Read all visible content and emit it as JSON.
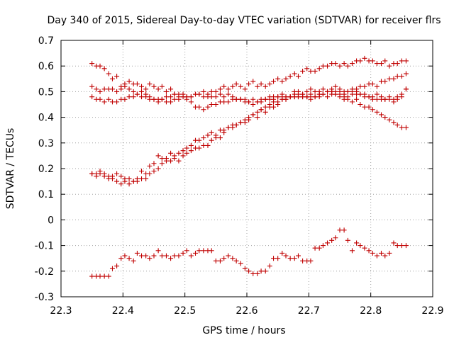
{
  "chart_data": {
    "type": "scatter",
    "title": "Day 340 of 2015, Sidereal Day-to-day VTEC variation (SDTVAR) for receiver flrs",
    "xlabel": "GPS time / hours",
    "ylabel": "SDTVAR / TECUs",
    "xlim": [
      22.3,
      22.9
    ],
    "ylim": [
      -0.3,
      0.7
    ],
    "xticks": [
      "22.3",
      "22.4",
      "22.5",
      "22.6",
      "22.7",
      "22.8",
      "22.9"
    ],
    "yticks": [
      "-0.3",
      "-0.2",
      "-0.1",
      "0",
      "0.1",
      "0.2",
      "0.3",
      "0.4",
      "0.5",
      "0.6",
      "0.7"
    ],
    "grid": true,
    "marker": "+",
    "color": "#c00000",
    "series": [
      {
        "name": "series-1",
        "x": [
          22.35,
          22.357,
          22.363,
          22.37,
          22.377,
          22.383,
          22.39,
          22.397,
          22.403,
          22.41,
          22.417,
          22.423,
          22.43,
          22.437,
          22.443,
          22.45,
          22.457,
          22.463,
          22.47,
          22.477,
          22.483,
          22.49,
          22.497,
          22.503,
          22.51,
          22.517,
          22.523,
          22.53,
          22.537,
          22.543,
          22.55,
          22.557,
          22.563,
          22.57,
          22.577,
          22.583,
          22.59,
          22.597,
          22.603,
          22.61,
          22.617,
          22.623,
          22.63,
          22.637,
          22.643,
          22.65,
          22.657,
          22.663,
          22.67,
          22.677,
          22.683,
          22.69,
          22.697,
          22.703,
          22.71,
          22.717,
          22.723,
          22.73,
          22.737,
          22.743,
          22.75,
          22.757,
          22.763,
          22.77,
          22.777,
          22.783,
          22.79,
          22.797,
          22.803,
          22.81,
          22.817,
          22.823,
          22.83,
          22.837,
          22.843,
          22.85,
          22.857
        ],
        "y": [
          0.61,
          0.6,
          0.6,
          0.59,
          0.57,
          0.55,
          0.56,
          0.52,
          0.53,
          0.54,
          0.53,
          0.53,
          0.52,
          0.51,
          0.53,
          0.52,
          0.51,
          0.52,
          0.5,
          0.51,
          0.49,
          0.49,
          0.48,
          0.47,
          0.46,
          0.44,
          0.44,
          0.43,
          0.44,
          0.45,
          0.45,
          0.46,
          0.46,
          0.46,
          0.47,
          0.47,
          0.47,
          0.46,
          0.46,
          0.45,
          0.46,
          0.46,
          0.47,
          0.47,
          0.48,
          0.48,
          0.49,
          0.48,
          0.48,
          0.49,
          0.48,
          0.49,
          0.48,
          0.49,
          0.48,
          0.49,
          0.49,
          0.5,
          0.5,
          0.5,
          0.49,
          0.48,
          0.47,
          0.46,
          0.47,
          0.45,
          0.44,
          0.44,
          0.43,
          0.42,
          0.41,
          0.4,
          0.39,
          0.38,
          0.37,
          0.36,
          0.36
        ]
      },
      {
        "name": "series-2",
        "x": [
          22.35,
          22.357,
          22.363,
          22.37,
          22.377,
          22.383,
          22.39,
          22.397,
          22.403,
          22.41,
          22.417,
          22.423,
          22.43,
          22.437,
          22.443,
          22.45,
          22.457,
          22.463,
          22.47,
          22.477,
          22.483,
          22.49,
          22.497,
          22.503,
          22.51,
          22.517,
          22.523,
          22.53,
          22.537,
          22.543,
          22.55,
          22.557,
          22.563,
          22.57,
          22.577,
          22.583,
          22.59,
          22.597,
          22.603,
          22.61,
          22.617,
          22.623,
          22.63,
          22.637,
          22.643,
          22.65,
          22.657,
          22.663,
          22.67,
          22.677,
          22.683,
          22.69,
          22.697,
          22.703,
          22.71,
          22.717,
          22.723,
          22.73,
          22.737,
          22.743,
          22.75,
          22.757,
          22.763,
          22.77,
          22.777,
          22.783,
          22.79,
          22.797,
          22.803,
          22.81,
          22.817,
          22.823,
          22.83,
          22.837,
          22.843,
          22.85,
          22.857
        ],
        "y": [
          0.52,
          0.51,
          0.5,
          0.51,
          0.51,
          0.51,
          0.5,
          0.51,
          0.52,
          0.51,
          0.5,
          0.49,
          0.5,
          0.49,
          0.48,
          0.47,
          0.47,
          0.47,
          0.48,
          0.48,
          0.49,
          0.48,
          0.49,
          0.48,
          0.48,
          0.49,
          0.49,
          0.5,
          0.49,
          0.5,
          0.5,
          0.51,
          0.52,
          0.51,
          0.52,
          0.53,
          0.52,
          0.51,
          0.53,
          0.54,
          0.52,
          0.53,
          0.52,
          0.53,
          0.54,
          0.55,
          0.54,
          0.55,
          0.56,
          0.57,
          0.56,
          0.58,
          0.59,
          0.58,
          0.58,
          0.59,
          0.6,
          0.6,
          0.61,
          0.61,
          0.6,
          0.61,
          0.6,
          0.61,
          0.62,
          0.62,
          0.63,
          0.62,
          0.62,
          0.61,
          0.61,
          0.62,
          0.6,
          0.61,
          0.61,
          0.62,
          0.62
        ]
      },
      {
        "name": "series-3",
        "x": [
          22.35,
          22.357,
          22.363,
          22.37,
          22.377,
          22.383,
          22.39,
          22.397,
          22.403,
          22.41,
          22.417,
          22.423,
          22.43,
          22.437,
          22.443,
          22.45,
          22.457,
          22.463,
          22.47,
          22.477,
          22.483,
          22.49,
          22.497,
          22.503,
          22.51,
          22.517,
          22.523,
          22.53,
          22.537,
          22.543,
          22.55,
          22.557,
          22.563,
          22.57,
          22.577,
          22.583,
          22.59,
          22.597,
          22.603,
          22.61,
          22.617,
          22.623,
          22.63,
          22.637,
          22.643,
          22.65,
          22.657,
          22.663,
          22.67,
          22.677,
          22.683,
          22.69,
          22.697,
          22.703,
          22.71,
          22.717,
          22.723,
          22.73,
          22.737,
          22.743,
          22.75,
          22.757,
          22.763,
          22.77,
          22.777,
          22.783,
          22.79,
          22.797,
          22.803,
          22.81,
          22.817,
          22.823,
          22.83,
          22.837,
          22.843,
          22.85,
          22.857
        ],
        "y": [
          0.48,
          0.47,
          0.47,
          0.46,
          0.47,
          0.46,
          0.46,
          0.47,
          0.47,
          0.48,
          0.48,
          0.49,
          0.48,
          0.48,
          0.47,
          0.47,
          0.46,
          0.47,
          0.46,
          0.46,
          0.47,
          0.47,
          0.48,
          0.48,
          0.48,
          0.49,
          0.49,
          0.48,
          0.48,
          0.48,
          0.48,
          0.49,
          0.48,
          0.49,
          0.48,
          0.47,
          0.47,
          0.47,
          0.46,
          0.47,
          0.46,
          0.47,
          0.47,
          0.48,
          0.47,
          0.48,
          0.48,
          0.47,
          0.48,
          0.48,
          0.49,
          0.48,
          0.48,
          0.47,
          0.48,
          0.48,
          0.49,
          0.48,
          0.49,
          0.49,
          0.5,
          0.49,
          0.5,
          0.51,
          0.51,
          0.52,
          0.52,
          0.53,
          0.53,
          0.52,
          0.54,
          0.54,
          0.55,
          0.55,
          0.56,
          0.56,
          0.57
        ]
      },
      {
        "name": "series-4",
        "x": [
          22.35,
          22.357,
          22.363,
          22.37,
          22.377,
          22.383,
          22.39,
          22.397,
          22.403,
          22.41,
          22.417,
          22.423,
          22.43,
          22.437,
          22.443,
          22.45,
          22.457,
          22.463,
          22.47,
          22.477,
          22.483,
          22.49,
          22.497,
          22.503,
          22.51,
          22.517,
          22.523,
          22.53,
          22.537,
          22.543,
          22.55,
          22.557,
          22.563,
          22.57,
          22.577,
          22.583,
          22.59,
          22.597,
          22.603,
          22.61,
          22.617,
          22.623,
          22.63,
          22.637,
          22.643,
          22.65,
          22.657,
          22.663,
          22.67,
          22.677,
          22.683,
          22.69,
          22.697,
          22.703,
          22.71,
          22.717,
          22.723,
          22.73,
          22.737,
          22.743,
          22.75,
          22.757,
          22.763,
          22.77,
          22.777,
          22.783,
          22.79,
          22.797,
          22.803,
          22.81,
          22.817,
          22.823,
          22.83,
          22.837,
          22.843,
          22.85,
          22.857
        ],
        "y": [
          0.18,
          0.18,
          0.19,
          0.18,
          0.17,
          0.17,
          0.18,
          0.17,
          0.16,
          0.16,
          0.15,
          0.16,
          0.19,
          0.18,
          0.21,
          0.22,
          0.25,
          0.24,
          0.24,
          0.26,
          0.25,
          0.26,
          0.27,
          0.28,
          0.29,
          0.31,
          0.31,
          0.32,
          0.33,
          0.34,
          0.33,
          0.35,
          0.35,
          0.36,
          0.37,
          0.37,
          0.38,
          0.38,
          0.39,
          0.41,
          0.4,
          0.43,
          0.42,
          0.44,
          0.44,
          0.45,
          0.47,
          0.48,
          0.48,
          0.5,
          0.5,
          0.49,
          0.5,
          0.51,
          0.5,
          0.5,
          0.51,
          0.5,
          0.51,
          0.52,
          0.51,
          0.5,
          0.5,
          0.5,
          0.49,
          0.49,
          0.49,
          0.48,
          0.48,
          0.49,
          0.48,
          0.47,
          0.47,
          0.46,
          0.47,
          0.48,
          0.51
        ]
      },
      {
        "name": "series-5",
        "x": [
          22.35,
          22.357,
          22.363,
          22.37,
          22.377,
          22.383,
          22.39,
          22.397,
          22.403,
          22.41,
          22.417,
          22.423,
          22.43,
          22.437,
          22.443,
          22.45,
          22.457,
          22.463,
          22.47,
          22.477,
          22.483,
          22.49,
          22.497,
          22.503,
          22.51,
          22.517,
          22.523,
          22.53,
          22.537,
          22.543,
          22.55,
          22.557,
          22.563,
          22.57,
          22.577,
          22.583,
          22.59,
          22.597,
          22.603,
          22.61,
          22.617,
          22.623,
          22.63,
          22.637,
          22.643,
          22.65,
          22.657,
          22.663,
          22.67,
          22.677,
          22.683,
          22.69,
          22.697,
          22.703,
          22.71,
          22.717,
          22.723,
          22.73,
          22.737,
          22.743,
          22.75,
          22.757,
          22.763,
          22.77,
          22.777,
          22.783,
          22.79,
          22.797,
          22.803,
          22.81,
          22.817,
          22.823,
          22.83,
          22.837,
          22.843,
          22.85,
          22.857
        ],
        "y": [
          0.18,
          0.17,
          0.18,
          0.17,
          0.16,
          0.16,
          0.15,
          0.14,
          0.15,
          0.14,
          0.15,
          0.15,
          0.16,
          0.16,
          0.18,
          0.19,
          0.2,
          0.22,
          0.23,
          0.23,
          0.24,
          0.23,
          0.25,
          0.26,
          0.27,
          0.28,
          0.28,
          0.29,
          0.29,
          0.31,
          0.32,
          0.32,
          0.34,
          0.36,
          0.36,
          0.37,
          0.38,
          0.39,
          0.4,
          0.41,
          0.42,
          0.43,
          0.44,
          0.45,
          0.46,
          0.46,
          0.47,
          0.47,
          0.48,
          0.48,
          0.48,
          0.48,
          0.48,
          0.48,
          0.48,
          0.49,
          0.49,
          0.5,
          0.5,
          0.49,
          0.48,
          0.47,
          0.48,
          0.49,
          0.5,
          0.49,
          0.48,
          0.48,
          0.47,
          0.47,
          0.47,
          0.47,
          0.48,
          0.47,
          0.48,
          0.49,
          0.51
        ]
      },
      {
        "name": "series-6",
        "x": [
          22.35,
          22.357,
          22.363,
          22.37,
          22.377,
          22.383,
          22.39,
          22.397,
          22.403,
          22.41,
          22.417,
          22.423,
          22.43,
          22.437,
          22.443,
          22.45,
          22.457,
          22.463,
          22.47,
          22.477,
          22.483,
          22.49,
          22.497,
          22.503,
          22.51,
          22.517,
          22.523,
          22.53,
          22.537,
          22.543,
          22.55,
          22.557,
          22.563,
          22.57,
          22.577,
          22.583,
          22.59,
          22.597,
          22.603,
          22.61,
          22.617,
          22.623,
          22.63,
          22.637,
          22.643,
          22.65,
          22.657,
          22.663,
          22.67,
          22.677,
          22.683,
          22.69,
          22.697,
          22.703,
          22.71,
          22.717,
          22.723,
          22.73,
          22.737,
          22.743,
          22.75,
          22.757,
          22.763,
          22.77,
          22.777,
          22.783,
          22.79,
          22.797,
          22.803,
          22.81,
          22.817,
          22.823,
          22.83,
          22.837,
          22.843,
          22.85,
          22.857
        ],
        "y": [
          -0.22,
          -0.22,
          -0.22,
          -0.22,
          -0.22,
          -0.19,
          -0.18,
          -0.15,
          -0.14,
          -0.15,
          -0.16,
          -0.13,
          -0.14,
          -0.14,
          -0.15,
          -0.14,
          -0.12,
          -0.14,
          -0.14,
          -0.15,
          -0.14,
          -0.14,
          -0.13,
          -0.12,
          -0.14,
          -0.13,
          -0.12,
          -0.12,
          -0.12,
          -0.12,
          -0.16,
          -0.16,
          -0.15,
          -0.14,
          -0.15,
          -0.16,
          -0.17,
          -0.19,
          -0.2,
          -0.21,
          -0.21,
          -0.2,
          -0.2,
          -0.18,
          -0.15,
          -0.15,
          -0.13,
          -0.14,
          -0.15,
          -0.15,
          -0.14,
          -0.16,
          -0.16,
          -0.16,
          -0.11,
          -0.11,
          -0.1,
          -0.09,
          -0.08,
          -0.07,
          -0.04,
          -0.04,
          -0.08,
          -0.12,
          -0.09,
          -0.1,
          -0.11,
          -0.12,
          -0.13,
          -0.14,
          -0.13,
          -0.14,
          -0.13,
          -0.09,
          -0.1,
          -0.1,
          -0.1
        ]
      }
    ]
  }
}
